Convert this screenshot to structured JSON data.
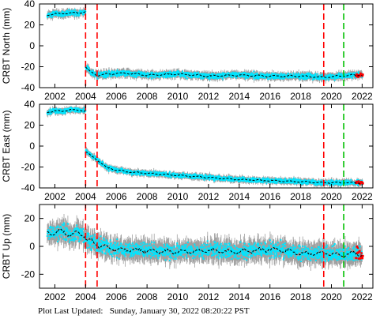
{
  "footer": {
    "label": "Plot Last Updated:",
    "timestamp": "Sunday, January 30, 2022 08:20:22 PST"
  },
  "colors": {
    "data": "#00e5ff",
    "errorbars": "#a0a0a0",
    "model": "#000000",
    "recent": "#ff0000",
    "break_red": "#ff0000",
    "break_green": "#00c000",
    "frame": "#000000"
  },
  "chart_data": [
    {
      "type": "scatter",
      "ylabel": "CRBT North (mm)",
      "xlim": [
        2001.0,
        2022.7
      ],
      "ylim": [
        -40,
        40
      ],
      "yticks": [
        -40,
        -20,
        0,
        20,
        40
      ],
      "xticks": [
        2002,
        2004,
        2006,
        2008,
        2010,
        2012,
        2014,
        2016,
        2018,
        2020,
        2022
      ],
      "grid": false,
      "breaks_red": [
        2004.0,
        2004.75,
        2019.5
      ],
      "breaks_green": [
        2020.8
      ],
      "series": [
        {
          "values_x": [
            2001.5,
            2002.0,
            2002.5,
            2003.0,
            2003.5,
            2004.0
          ],
          "values_y": [
            29,
            31,
            30,
            32,
            31,
            33
          ]
        },
        {
          "values_x": [
            2004.0,
            2004.3,
            2004.75,
            2005.5,
            2006.5,
            2008.0,
            2010.0,
            2012.0,
            2014.0,
            2016.0,
            2018.0,
            2019.5,
            2020.5,
            2021.5,
            2022.0
          ],
          "values_y": [
            -20,
            -25,
            -28,
            -27,
            -26,
            -28,
            -27,
            -29,
            -28,
            -29,
            -29,
            -30,
            -29,
            -28,
            -28
          ]
        }
      ],
      "noise": 2.5
    },
    {
      "type": "scatter",
      "ylabel": "CRBT East (mm)",
      "xlim": [
        2001.0,
        2022.7
      ],
      "ylim": [
        -40,
        40
      ],
      "yticks": [
        -40,
        -20,
        0,
        20,
        40
      ],
      "xticks": [
        2002,
        2004,
        2006,
        2008,
        2010,
        2012,
        2014,
        2016,
        2018,
        2020,
        2022
      ],
      "grid": false,
      "breaks_red": [
        2004.0,
        2004.75,
        2019.5
      ],
      "breaks_green": [
        2020.8
      ],
      "series": [
        {
          "values_x": [
            2001.5,
            2002.0,
            2002.5,
            2003.0,
            2003.5,
            2004.0
          ],
          "values_y": [
            32,
            34,
            33,
            35,
            34,
            34
          ]
        },
        {
          "values_x": [
            2004.0,
            2004.4,
            2004.75,
            2005.3,
            2006.0,
            2007.0,
            2008.0,
            2009.0,
            2010.0,
            2011.0,
            2012.0,
            2013.0,
            2014.0,
            2016.0,
            2018.0,
            2019.5,
            2020.5,
            2021.5,
            2022.0
          ],
          "values_y": [
            -5,
            -10,
            -13,
            -20,
            -23,
            -25,
            -26,
            -27,
            -28,
            -29,
            -30,
            -31,
            -32,
            -33,
            -34,
            -35,
            -35,
            -35,
            -35
          ]
        }
      ],
      "noise": 2.0
    },
    {
      "type": "scatter",
      "ylabel": "CRBT Up (mm)",
      "xlim": [
        2001.0,
        2022.7
      ],
      "ylim": [
        -30,
        30
      ],
      "yticks": [
        -20,
        0,
        20
      ],
      "xticks": [
        2002,
        2004,
        2006,
        2008,
        2010,
        2012,
        2014,
        2016,
        2018,
        2020,
        2022
      ],
      "grid": false,
      "breaks_red": [
        2004.0,
        2004.75,
        2019.5
      ],
      "breaks_green": [
        2020.8
      ],
      "series": [
        {
          "values_x": [
            2001.5,
            2002.0,
            2002.5,
            2003.0,
            2003.5,
            2004.0
          ],
          "values_y": [
            10,
            9,
            11,
            8,
            10,
            7
          ]
        },
        {
          "values_x": [
            2004.0,
            2004.5,
            2005.0,
            2006.0,
            2008.0,
            2010.0,
            2012.0,
            2014.0,
            2016.0,
            2017.0,
            2018.0,
            2019.5,
            2020.5,
            2021.5,
            2022.0
          ],
          "values_y": [
            5,
            3,
            0,
            -2,
            -3,
            -4,
            -3,
            -4,
            -2,
            -3,
            -5,
            -5,
            -6,
            -5,
            -6
          ]
        }
      ],
      "noise": 5.0
    }
  ]
}
